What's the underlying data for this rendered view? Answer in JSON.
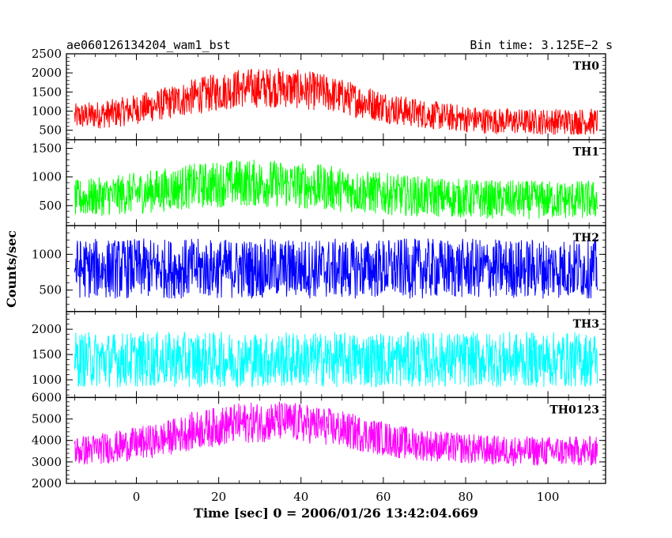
{
  "header": {
    "left": "ae060126134204_wam1_bst",
    "right": "Bin time: 3.125E−2 s"
  },
  "chart_data": {
    "type": "line",
    "title": "ae060126134204_wam1_bst",
    "subtitle": "Bin time: 3.125E−2 s",
    "xlabel": "Time [sec] 0 = 2006/01/26 13:42:04.669",
    "ylabel": "Counts/sec",
    "xlim": [
      -17,
      114
    ],
    "x_ticks": [
      0,
      20,
      40,
      60,
      80,
      100
    ],
    "bin_time_s": 0.03125,
    "grid": false,
    "panels": [
      {
        "name": "TH0",
        "color": "#ff0000",
        "ylim": [
          250,
          2500
        ],
        "y_ticks": [
          500,
          1000,
          1500,
          2000,
          2500
        ],
        "envelope": {
          "x": [
            -15,
            -5,
            5,
            15,
            25,
            35,
            45,
            55,
            65,
            75,
            85,
            95,
            105,
            112
          ],
          "mean": [
            850,
            950,
            1150,
            1400,
            1600,
            1620,
            1500,
            1250,
            1000,
            850,
            750,
            720,
            730,
            720
          ],
          "spread": [
            350,
            380,
            420,
            480,
            520,
            530,
            500,
            450,
            400,
            370,
            350,
            340,
            350,
            350
          ]
        }
      },
      {
        "name": "TH1",
        "color": "#00ff00",
        "ylim": [
          150,
          1650
        ],
        "y_ticks": [
          500,
          1000,
          1500
        ],
        "envelope": {
          "x": [
            -15,
            -5,
            5,
            15,
            25,
            35,
            45,
            55,
            65,
            75,
            85,
            95,
            105,
            112
          ],
          "mean": [
            620,
            680,
            760,
            850,
            900,
            880,
            820,
            740,
            680,
            640,
            610,
            600,
            600,
            600
          ],
          "spread": [
            330,
            350,
            380,
            400,
            420,
            420,
            400,
            380,
            360,
            350,
            340,
            340,
            340,
            340
          ]
        }
      },
      {
        "name": "TH2",
        "color": "#0000ff",
        "ylim": [
          200,
          1400
        ],
        "y_ticks": [
          500,
          1000
        ],
        "envelope": {
          "x": [
            -15,
            112
          ],
          "mean": [
            800,
            800
          ],
          "spread": [
            420,
            420
          ]
        }
      },
      {
        "name": "TH3",
        "color": "#00ffff",
        "ylim": [
          650,
          2350
        ],
        "y_ticks": [
          1000,
          1500,
          2000
        ],
        "envelope": {
          "x": [
            -15,
            112
          ],
          "mean": [
            1400,
            1400
          ],
          "spread": [
            550,
            550
          ]
        }
      },
      {
        "name": "TH0123",
        "color": "#ff00ff",
        "ylim": [
          2000,
          6000
        ],
        "y_ticks": [
          2000,
          3000,
          4000,
          5000,
          6000
        ],
        "envelope": {
          "x": [
            -15,
            -5,
            5,
            15,
            25,
            35,
            45,
            55,
            65,
            75,
            85,
            95,
            105,
            112
          ],
          "mean": [
            3500,
            3700,
            4000,
            4500,
            4800,
            4900,
            4700,
            4300,
            3900,
            3700,
            3550,
            3500,
            3500,
            3500
          ],
          "spread": [
            700,
            750,
            800,
            900,
            950,
            950,
            900,
            850,
            780,
            730,
            700,
            700,
            700,
            700
          ]
        }
      }
    ]
  }
}
